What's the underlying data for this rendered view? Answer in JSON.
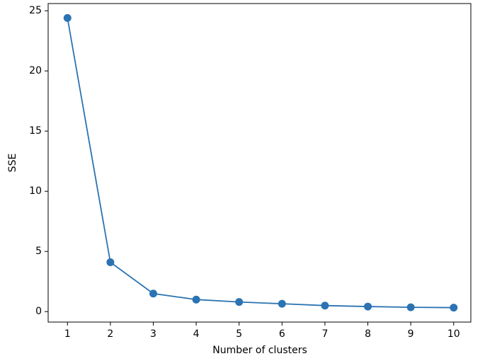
{
  "chart_data": {
    "type": "line",
    "x_label": "Number of clusters",
    "y_label": "SSE",
    "x": [
      1,
      2,
      3,
      4,
      5,
      6,
      7,
      8,
      9,
      10
    ],
    "series": [
      {
        "name": "SSE",
        "color": "#2b73b3",
        "values": [
          24.4,
          4.1,
          1.5,
          1.0,
          0.8,
          0.65,
          0.5,
          0.42,
          0.36,
          0.33
        ]
      }
    ],
    "xlim": [
      0.55,
      10.4
    ],
    "ylim": [
      -0.87,
      25.6
    ],
    "xticks": [
      1,
      2,
      3,
      4,
      5,
      6,
      7,
      8,
      9,
      10
    ],
    "yticks": [
      0,
      5,
      10,
      15,
      20,
      25
    ],
    "markers": true
  }
}
